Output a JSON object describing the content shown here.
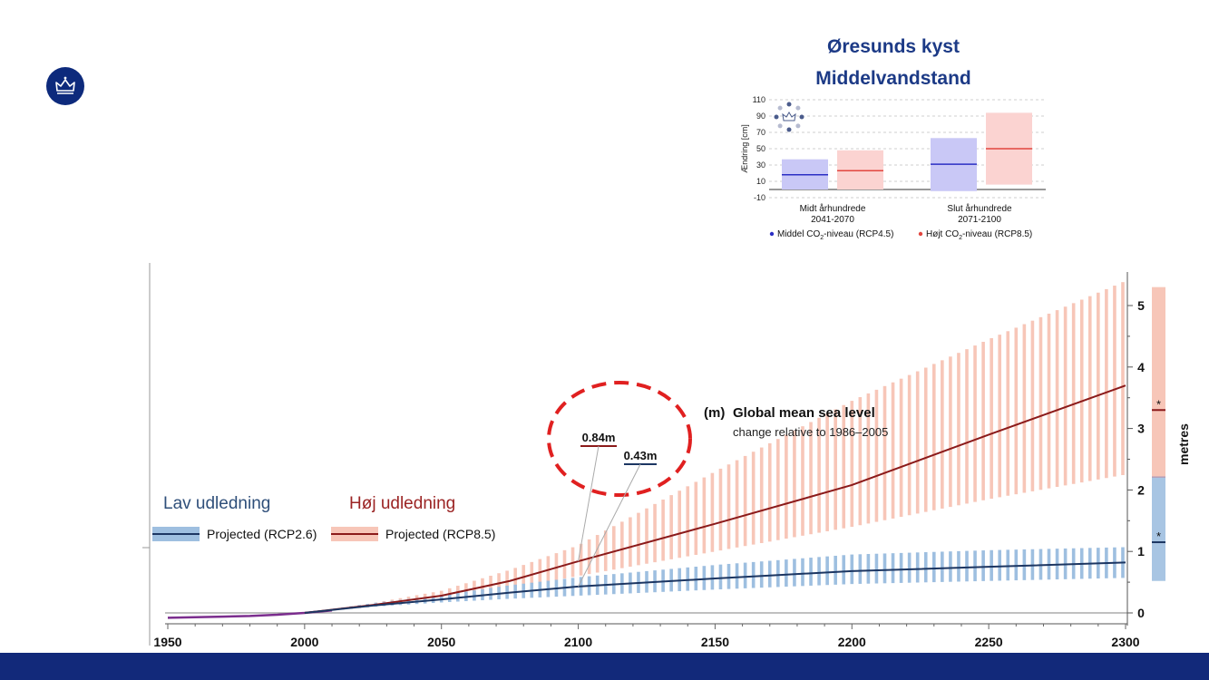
{
  "header": {
    "title_line1": "Øresunds kyst",
    "title_line2": "Middelvandstand"
  },
  "colors": {
    "brand_navy": "#12297a",
    "rcp26_line": "#1c3662",
    "rcp26_band": "#9ebfe0",
    "rcp85_line": "#8b1a1a",
    "rcp85_band": "#f7c6b8",
    "rcp45_small": "#2b2fc4",
    "rcp45_small_band": "#c9c8f6",
    "rcp85_small": "#e2463f",
    "rcp85_small_band": "#fbd3d1",
    "callout_circle": "#e02020"
  },
  "chart_data": [
    {
      "type": "bar",
      "title": "Øresunds kyst Middelvandstand",
      "ylabel": "Ændring [cm]",
      "ylim": [
        -10,
        110
      ],
      "yticks": [
        -10,
        10,
        30,
        50,
        70,
        90,
        110
      ],
      "grid": true,
      "categories": [
        {
          "line1": "Midt århundrede",
          "line2": "2041-2070"
        },
        {
          "line1": "Slut århundrede",
          "line2": "2071-2100"
        }
      ],
      "series": [
        {
          "name_pre": "Middel CO",
          "name_sub": "2",
          "name_post": "-niveau (RCP4.5)",
          "median": [
            18,
            31
          ],
          "low": [
            0,
            -2
          ],
          "high": [
            37,
            63
          ]
        },
        {
          "name_pre": "Højt CO",
          "name_sub": "2",
          "name_post": "-niveau (RCP8.5)",
          "median": [
            23,
            50
          ],
          "low": [
            0,
            6
          ],
          "high": [
            48,
            94
          ]
        }
      ],
      "legend_position": "bottom"
    },
    {
      "type": "line",
      "title": "Global mean sea level",
      "title_tag": "(m)",
      "subtitle": "change relative to 1986–2005",
      "ylabel": "metres",
      "xlim": [
        1950,
        2300
      ],
      "ylim": [
        0,
        5
      ],
      "xticks": [
        1950,
        2000,
        2050,
        2100,
        2150,
        2200,
        2250,
        2300
      ],
      "yticks": [
        0,
        1,
        2,
        3,
        4,
        5
      ],
      "historical": {
        "x": [
          1950,
          1960,
          1970,
          1980,
          1990,
          2000,
          2010
        ],
        "y": [
          -0.08,
          -0.07,
          -0.06,
          -0.05,
          -0.03,
          0.0,
          0.04
        ]
      },
      "series": [
        {
          "name": "Projected (RCP2.6)",
          "group_label": "Lav udledning",
          "x": [
            2000,
            2025,
            2050,
            2075,
            2100,
            2150,
            2200,
            2250,
            2300
          ],
          "y": [
            0.0,
            0.12,
            0.22,
            0.33,
            0.43,
            0.56,
            0.68,
            0.75,
            0.82
          ],
          "low": [
            0.0,
            0.1,
            0.17,
            0.23,
            0.28,
            0.38,
            0.47,
            0.52,
            0.57
          ],
          "high": [
            0.0,
            0.16,
            0.29,
            0.45,
            0.58,
            0.78,
            0.95,
            1.02,
            1.07
          ]
        },
        {
          "name": "Projected (RCP8.5)",
          "group_label": "Høj udledning",
          "x": [
            2000,
            2025,
            2050,
            2075,
            2100,
            2150,
            2200,
            2250,
            2300
          ],
          "y": [
            0.0,
            0.13,
            0.28,
            0.52,
            0.84,
            1.45,
            2.08,
            2.9,
            3.7
          ],
          "low": [
            0.0,
            0.1,
            0.22,
            0.4,
            0.6,
            1.0,
            1.4,
            1.85,
            2.25
          ],
          "high": [
            0.0,
            0.16,
            0.36,
            0.7,
            1.1,
            2.3,
            3.45,
            4.45,
            5.4
          ]
        }
      ],
      "side_bars": [
        {
          "series": "Projected (RCP8.5)",
          "low": 2.2,
          "high": 5.3,
          "median": 3.3,
          "marker": "*"
        },
        {
          "series": "Projected (RCP2.6)",
          "low": 0.52,
          "high": 2.22,
          "median": 1.15,
          "marker": "*"
        }
      ],
      "annotations": [
        {
          "text": "0.84m",
          "series": "Projected (RCP8.5)",
          "x": 2100,
          "y": 0.84
        },
        {
          "text": "0.43m",
          "series": "Projected (RCP2.6)",
          "x": 2100,
          "y": 0.43
        }
      ],
      "legend_position": "left"
    }
  ]
}
